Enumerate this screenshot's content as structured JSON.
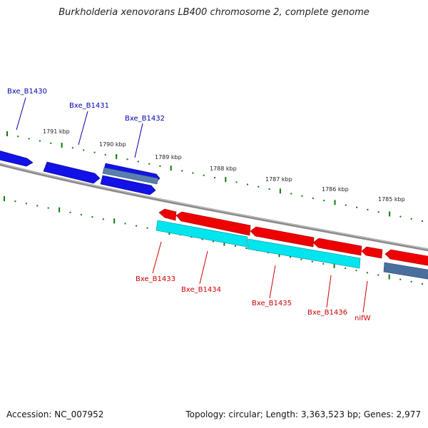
{
  "title": "Burkholderia xenovorans LB400 chromosome 2, complete genome",
  "footer": {
    "accession": "Accession: NC_007952",
    "summary": "Topology: circular; Length: 3,363,523 bp; Genes: 2,977"
  },
  "scale_labels": [
    "1791 kbp",
    "1790 kbp",
    "1789 kbp",
    "1788 kbp",
    "1787 kbp",
    "1786 kbp",
    "1785 kbp"
  ],
  "forward_gene_labels": [
    "Bxe_B1430",
    "Bxe_B1431",
    "Bxe_B1432"
  ],
  "reverse_gene_labels": [
    "Bxe_B1433",
    "Bxe_B1434",
    "Bxe_B1435",
    "Bxe_B1436",
    "nifW"
  ],
  "colors": {
    "forward_gene": "#1212e6",
    "forward_label": "#0000aa",
    "reverse_gene": "#ee0000",
    "reverse_label": "#cc0000",
    "cds_highlight": "#00e5ee",
    "steel_gene": "#4a6f9e",
    "backbone": "#808080",
    "tick": "#0a7a0a"
  }
}
